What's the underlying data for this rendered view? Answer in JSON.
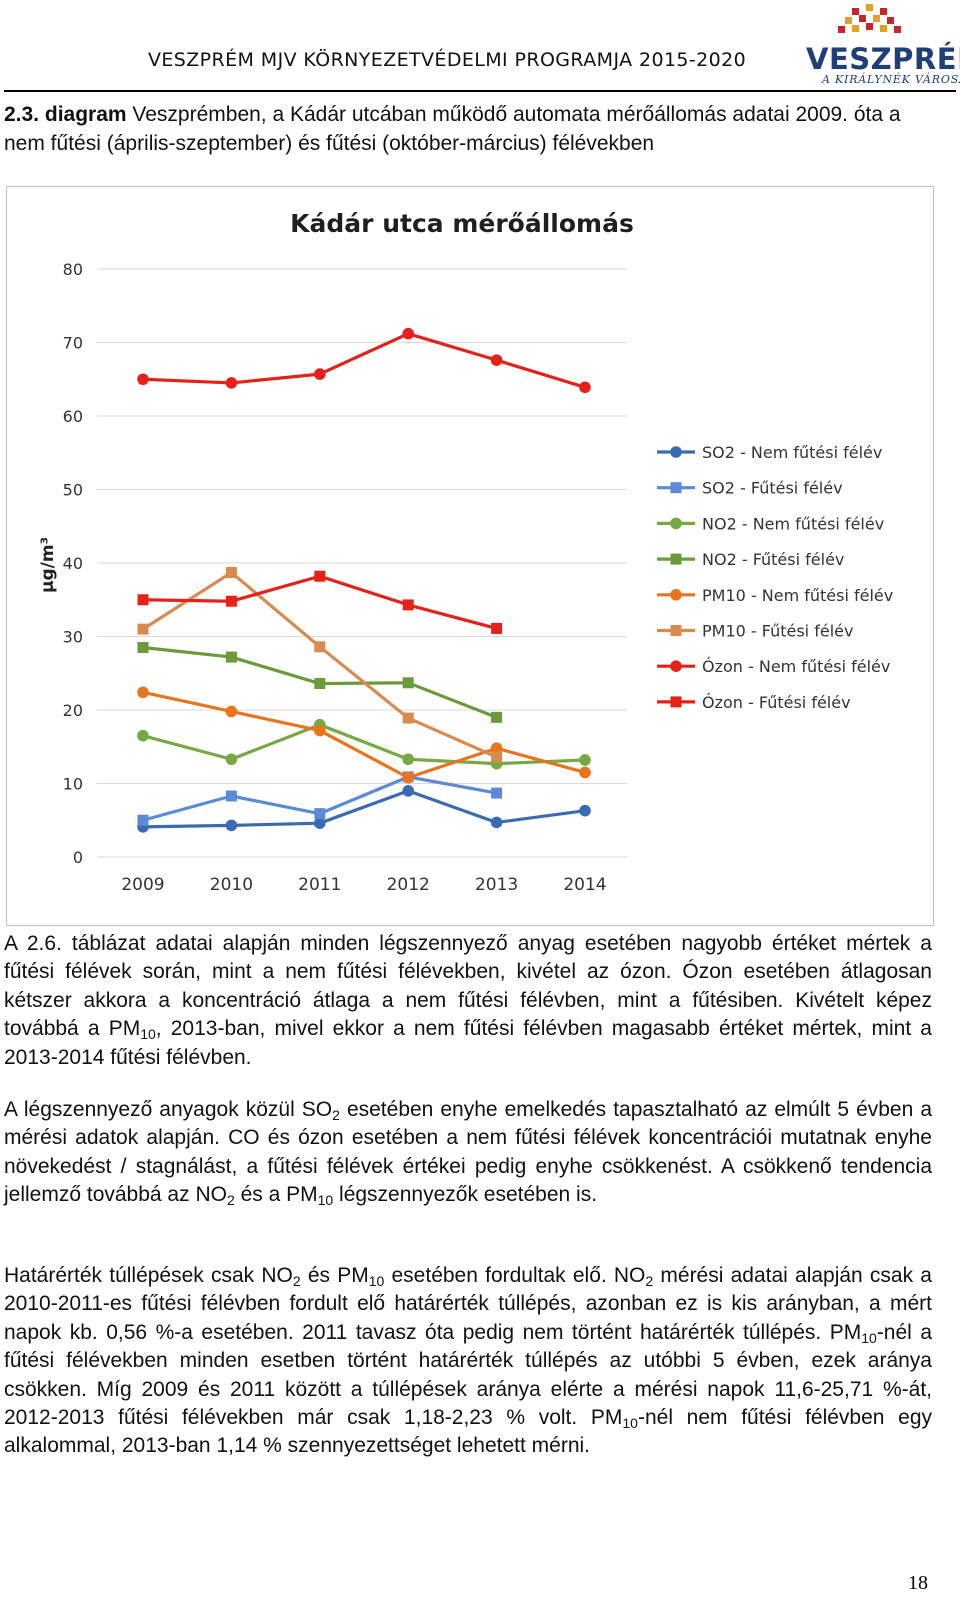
{
  "header": {
    "title": "VESZPRÉM MJV KÖRNYEZETVÉDELMI PROGRAMJA 2015-2020",
    "logo_word": "VESZPRÉM",
    "logo_tagline": "A KIRÁLYNÉK VÁROSA"
  },
  "caption": {
    "number": "2.3. diagram",
    "text": " Veszprémben, a Kádár utcában működő automata mérőállomás adatai 2009. óta a nem fűtési (április-szeptember) és fűtési (október-március) félévekben"
  },
  "colors": {
    "so2": "#3a6bb2",
    "no2": "#6f9e3a",
    "pm10": "#e37d2a",
    "ozon": "#e5211a",
    "grid": "#d9d9d9",
    "title": "#1f1f1f"
  },
  "chart_data": {
    "type": "line",
    "title": "Kádár utca mérőállomás",
    "ylabel": "μg/m³",
    "xlabel": "",
    "categories": [
      "2009",
      "2010",
      "2011",
      "2012",
      "2013",
      "2014"
    ],
    "ylim": [
      0,
      80
    ],
    "yticks": [
      "0",
      "10",
      "20",
      "30",
      "40",
      "50",
      "60",
      "70",
      "80"
    ],
    "grid": true,
    "legend_position": "right",
    "series": [
      {
        "name": "SO2 - Nem fűtési félév",
        "marker": "circle",
        "color": "#3a6bb2",
        "values": [
          4.1,
          4.3,
          4.6,
          9.0,
          4.7,
          6.3
        ]
      },
      {
        "name": "SO2 - Fűtési félév",
        "marker": "square",
        "color": "#5b8bd6",
        "values": [
          5.0,
          8.3,
          5.9,
          10.9,
          8.7,
          null
        ]
      },
      {
        "name": "NO2 - Nem fűtési félév",
        "marker": "circle",
        "color": "#76a844",
        "values": [
          16.5,
          13.3,
          18.0,
          13.3,
          12.7,
          13.2
        ]
      },
      {
        "name": "NO2 - Fűtési félév",
        "marker": "square",
        "color": "#6a9a3a",
        "values": [
          28.5,
          27.2,
          23.6,
          23.7,
          19.0,
          null
        ]
      },
      {
        "name": "PM10 - Nem fűtési félév",
        "marker": "circle",
        "color": "#e8751d",
        "values": [
          22.4,
          19.8,
          17.2,
          10.8,
          14.8,
          11.5
        ]
      },
      {
        "name": "PM10 - Fűtési félév",
        "marker": "square",
        "color": "#d98a4f",
        "values": [
          31.0,
          38.7,
          28.6,
          18.9,
          13.6,
          null
        ]
      },
      {
        "name": "Ózon - Nem fűtési félév",
        "marker": "circle",
        "color": "#e5211a",
        "values": [
          65.0,
          64.5,
          65.7,
          71.2,
          67.6,
          63.9
        ]
      },
      {
        "name": "Ózon - Fűtési félév",
        "marker": "square",
        "color": "#e5211a",
        "values": [
          35.0,
          34.8,
          38.2,
          34.3,
          31.1,
          null
        ]
      }
    ]
  },
  "paragraphs": [
    [
      {
        "t": "A 2.6. táblázat adatai alapján minden légszennyező anyag esetében nagyobb értéket mértek a fűtési félévek során, mint a nem fűtési félévekben, kivétel az ózon. Ózon esetében átlagosan kétszer akkora a koncentráció átlaga a nem fűtési félévben, mint a fűtésiben. Kivételt képez továbbá a PM"
      },
      {
        "s": "10"
      },
      {
        "t": ", 2013-ban, mivel ekkor a nem fűtési félévben magasabb értéket mértek, mint a 2013-2014 fűtési félévben."
      }
    ],
    [
      {
        "t": "A légszennyező anyagok közül SO"
      },
      {
        "s": "2"
      },
      {
        "t": " esetében enyhe emelkedés tapasztalható az elmúlt 5 évben a mérési adatok alapján. CO és ózon esetében a nem fűtési félévek koncentrációi mutatnak enyhe növekedést / stagnálást, a fűtési félévek értékei pedig enyhe csökkenést. A csökkenő tendencia jellemző továbbá az NO"
      },
      {
        "s": "2"
      },
      {
        "t": " és a PM"
      },
      {
        "s": "10"
      },
      {
        "t": " légszennyezők esetében is."
      }
    ],
    [
      {
        "t": "Határérték túllépések csak NO"
      },
      {
        "s": "2"
      },
      {
        "t": " és PM"
      },
      {
        "s": "10"
      },
      {
        "t": " esetében fordultak elő. NO"
      },
      {
        "s": "2"
      },
      {
        "t": " mérési adatai alapján csak a 2010-2011-es fűtési félévben fordult elő határérték túllépés, azonban ez is kis arányban, a mért napok kb. 0,56 %-a esetében. 2011 tavasz óta pedig nem történt határérték túllépés. PM"
      },
      {
        "s": "10"
      },
      {
        "t": "-nél a fűtési félévekben minden esetben történt határérték túllépés az utóbbi 5 évben, ezek aránya csökken. Míg 2009 és 2011 között a túllépések aránya elérte a mérési napok 11,6-25,71 %-át, 2012-2013 fűtési félévekben már csak 1,18-2,23 % volt. PM"
      },
      {
        "s": "10"
      },
      {
        "t": "-nél nem fűtési félévben egy alkalommal, 2013-ban 1,14 % szennyezettséget lehetett mérni."
      }
    ]
  ],
  "page_number": "18"
}
